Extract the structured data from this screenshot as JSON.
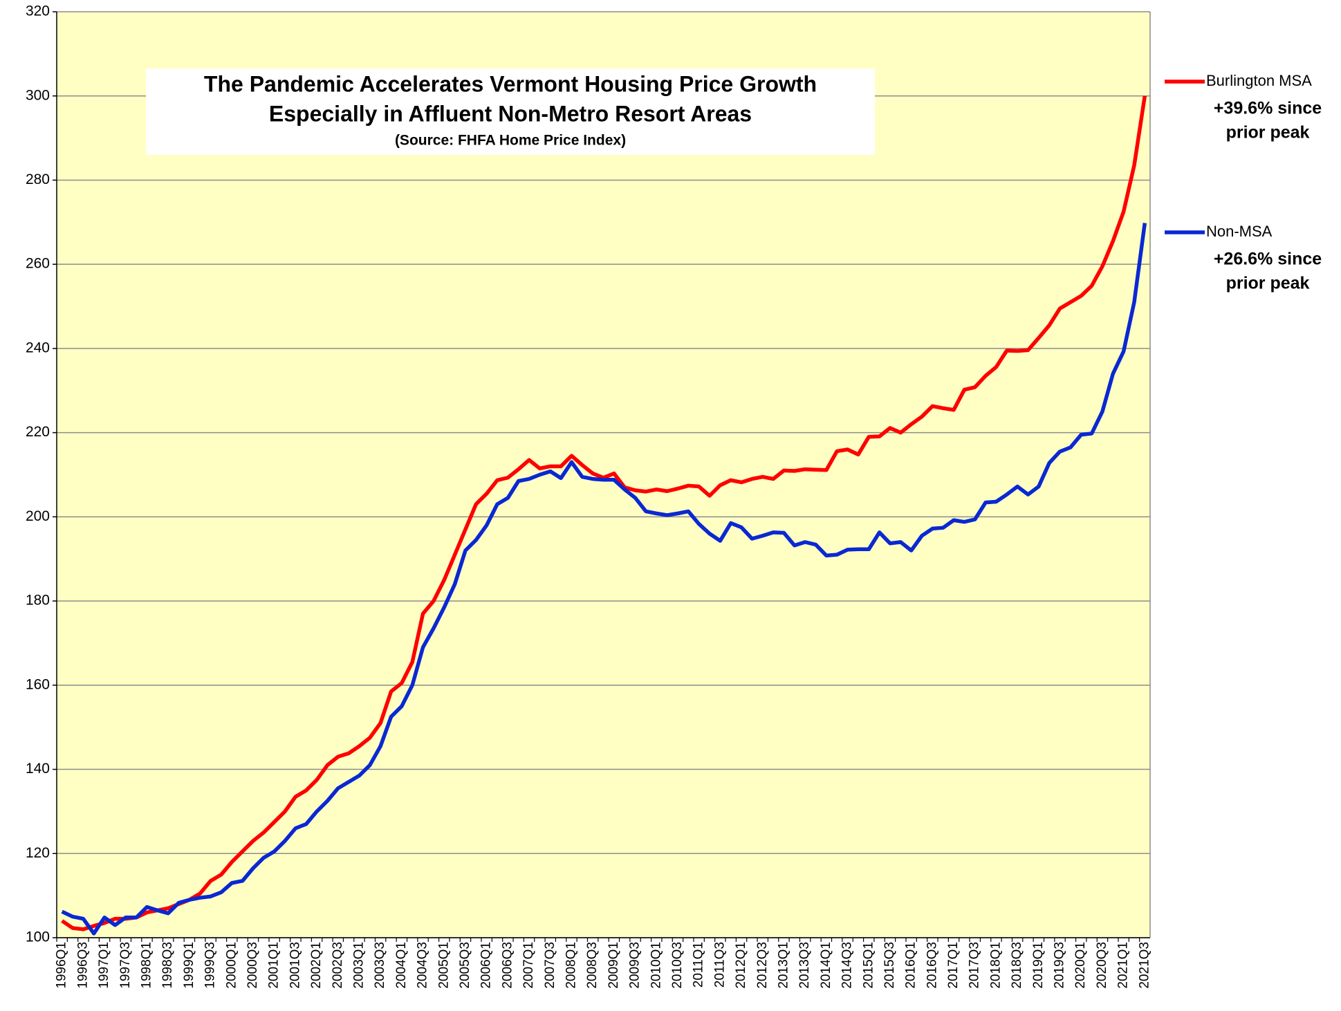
{
  "chart_data": {
    "type": "line",
    "title": [
      "The Pandemic Accelerates Vermont Housing Price Growth",
      "Especially in Affluent Non-Metro Resort Areas"
    ],
    "subtitle": "(Source:  FHFA Home Price Index)",
    "categories": [
      "1996Q1",
      null,
      "1996Q3",
      null,
      "1997Q1",
      null,
      "1997Q3",
      null,
      "1998Q1",
      null,
      "1998Q3",
      null,
      "1999Q1",
      null,
      "1999Q3",
      null,
      "2000Q1",
      null,
      "2000Q3",
      null,
      "2001Q1",
      null,
      "2001Q3",
      null,
      "2002Q1",
      null,
      "2002Q3",
      null,
      "2003Q1",
      null,
      "2003Q3",
      null,
      "2004Q1",
      null,
      "2004Q3",
      null,
      "2005Q1",
      null,
      "2005Q3",
      null,
      "2006Q1",
      null,
      "2006Q3",
      null,
      "2007Q1",
      null,
      "2007Q3",
      null,
      "2008Q1",
      null,
      "2008Q3",
      null,
      "2009Q1",
      null,
      "2009Q3",
      null,
      "2010Q1",
      null,
      "2010Q3",
      null,
      "2011Q1",
      null,
      "2011Q3",
      null,
      "2012Q1",
      null,
      "2012Q3",
      null,
      "2013Q1",
      null,
      "2013Q3",
      null,
      "2014Q1",
      null,
      "2014Q3",
      null,
      "2015Q1",
      null,
      "2015Q3",
      null,
      "2016Q1",
      null,
      "2016Q3",
      null,
      "2017Q1",
      null,
      "2017Q3",
      null,
      "2018Q1",
      null,
      "2018Q3",
      null,
      "2019Q1",
      null,
      "2019Q3",
      null,
      "2020Q1",
      null,
      "2020Q3",
      null,
      "2021Q1",
      null,
      "2021Q3"
    ],
    "series": [
      {
        "name": "Burlington MSA",
        "color": "#ff0000",
        "annotation": [
          "+39.6% since",
          "prior peak"
        ],
        "values": [
          104,
          102.3,
          102,
          102.8,
          103.5,
          104.5,
          104.5,
          104.8,
          106,
          106.5,
          107,
          108,
          109,
          110.5,
          113.5,
          115,
          118,
          120.5,
          123,
          125,
          127.5,
          130,
          133.5,
          135,
          137.5,
          141,
          143,
          143.8,
          145.5,
          147.5,
          151,
          158.5,
          160.5,
          165.5,
          177,
          180,
          185,
          191,
          197,
          203,
          205.5,
          208.7,
          209.3,
          211.3,
          213.5,
          211.5,
          212,
          212,
          214.5,
          212.3,
          210.3,
          209.3,
          210.3,
          207,
          206.3,
          206,
          206.5,
          206.1,
          206.7,
          207.4,
          207.2,
          205,
          207.5,
          208.7,
          208.2,
          209,
          209.5,
          209,
          211,
          210.9,
          211.3,
          211.2,
          211.1,
          215.6,
          216,
          214.8,
          219,
          219.1,
          221.1,
          220,
          222,
          223.8,
          226.3,
          225.8,
          225.4,
          230.2,
          230.8,
          233.5,
          235.6,
          239.5,
          239.4,
          239.6,
          242.5,
          245.5,
          249.5,
          251,
          252.5,
          254.9,
          259.5,
          265.5,
          272.5,
          283.5,
          300
        ]
      },
      {
        "name": "Non-MSA",
        "color": "#0a28d2",
        "annotation": [
          "+26.6% since",
          "prior peak"
        ],
        "values": [
          106.2,
          105,
          104.5,
          101,
          104.8,
          103,
          104.8,
          104.8,
          107.3,
          106.5,
          105.8,
          108.3,
          109,
          109.5,
          109.8,
          110.8,
          113,
          113.5,
          116.5,
          119,
          120.5,
          123,
          126,
          127,
          130,
          132.5,
          135.5,
          137,
          138.5,
          141,
          145.5,
          152.5,
          155,
          160,
          169,
          173.5,
          178.5,
          184,
          192,
          194.5,
          198,
          203,
          204.5,
          208.5,
          209,
          210,
          210.8,
          209.2,
          213,
          209.5,
          209,
          208.8,
          208.8,
          206.5,
          204.5,
          201.3,
          200.8,
          200.4,
          200.8,
          201.3,
          198.3,
          196,
          194.3,
          198.5,
          197.5,
          194.8,
          195.5,
          196.3,
          196.2,
          193.2,
          194,
          193.4,
          190.8,
          191,
          192.2,
          192.3,
          192.3,
          196.3,
          193.7,
          194,
          192,
          195.5,
          197.2,
          197.4,
          199.2,
          198.8,
          199.4,
          203.4,
          203.6,
          205.3,
          207.2,
          205.3,
          207.2,
          212.8,
          215.5,
          216.5,
          219.5,
          219.8,
          225,
          234,
          239.3,
          251,
          269.8
        ]
      }
    ],
    "ylim": [
      100,
      320
    ],
    "yticks": [
      100,
      120,
      140,
      160,
      180,
      200,
      220,
      240,
      260,
      280,
      300,
      320
    ],
    "grid": true,
    "background": "#ffffc4"
  }
}
